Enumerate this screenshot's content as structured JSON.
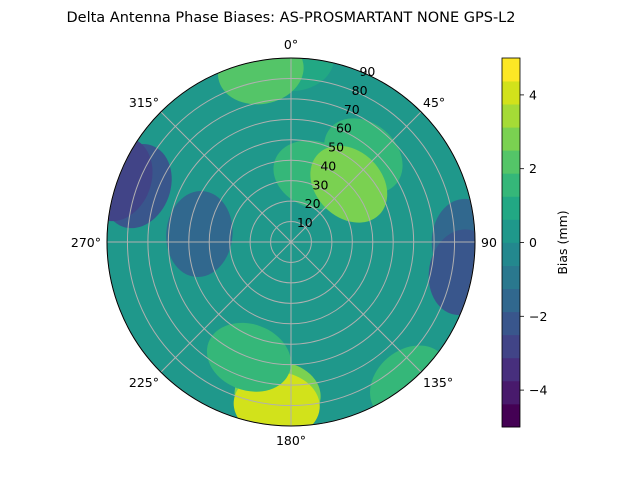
{
  "chart_data": {
    "type": "polar-contour",
    "title": "Delta Antenna Phase Biases: AS-PROSMARTANT  NONE GPS-L2",
    "angular_ticks": [
      {
        "deg": 0,
        "label": "0°"
      },
      {
        "deg": 45,
        "label": "45°"
      },
      {
        "deg": 90,
        "label": "90"
      },
      {
        "deg": 135,
        "label": "135°"
      },
      {
        "deg": 180,
        "label": "180°"
      },
      {
        "deg": 225,
        "label": "225°"
      },
      {
        "deg": 270,
        "label": "270°"
      },
      {
        "deg": 315,
        "label": "315°"
      }
    ],
    "radial_ticks": [
      10,
      20,
      30,
      40,
      50,
      60,
      70,
      80,
      90
    ],
    "radial_tick_labels": [
      "10",
      "20",
      "30",
      "40",
      "50",
      "60",
      "70",
      "80",
      "90"
    ],
    "radial_range": [
      0,
      90
    ],
    "direction": "clockwise",
    "zero_location": "north",
    "grid": true,
    "colorbar": {
      "label": "Bias (mm)",
      "range": [
        -5,
        5
      ],
      "levels": [
        -5,
        -4.5,
        -4,
        -3.5,
        -3,
        -2.5,
        -2,
        -1.5,
        -1,
        -0.5,
        0,
        0.5,
        1,
        1.5,
        2,
        2.5,
        3,
        3.5,
        4,
        4.5,
        5
      ],
      "ticks": [
        -4,
        -2,
        0,
        2,
        4
      ],
      "tick_labels": [
        "−4",
        "−2",
        "0",
        "2",
        "4"
      ],
      "colors": [
        "#440154",
        "#481a6c",
        "#472f7d",
        "#414487",
        "#39568c",
        "#31688e",
        "#2a788e",
        "#23888e",
        "#1f988b",
        "#22a884",
        "#35b779",
        "#54c568",
        "#7ad151",
        "#a5db36",
        "#d2e21b",
        "#fde725"
      ]
    },
    "field": {
      "description": "contour levels of bias in mm over azimuth/elevation-angle grid",
      "base_level": 0,
      "regions": [
        {
          "level": 1,
          "az": 0,
          "r": 90
        },
        {
          "level": 2,
          "az": 350,
          "r": 85
        },
        {
          "level": 1.5,
          "az": 40,
          "r": 55
        },
        {
          "level": 1.5,
          "az": 20,
          "r": 35
        },
        {
          "level": 2.5,
          "az": 45,
          "r": 40
        },
        {
          "level": 3,
          "az": 185,
          "r": 75
        },
        {
          "level": 4,
          "az": 185,
          "r": 80
        },
        {
          "level": 1.5,
          "az": 200,
          "r": 60
        },
        {
          "level": -1.5,
          "az": 90,
          "r": 85
        },
        {
          "level": -2.5,
          "az": 100,
          "r": 85
        },
        {
          "level": -1.5,
          "az": 275,
          "r": 45
        },
        {
          "level": -2,
          "az": 290,
          "r": 80
        },
        {
          "level": -3,
          "az": 290,
          "r": 90
        },
        {
          "level": 1.5,
          "az": 140,
          "r": 90
        }
      ]
    }
  }
}
